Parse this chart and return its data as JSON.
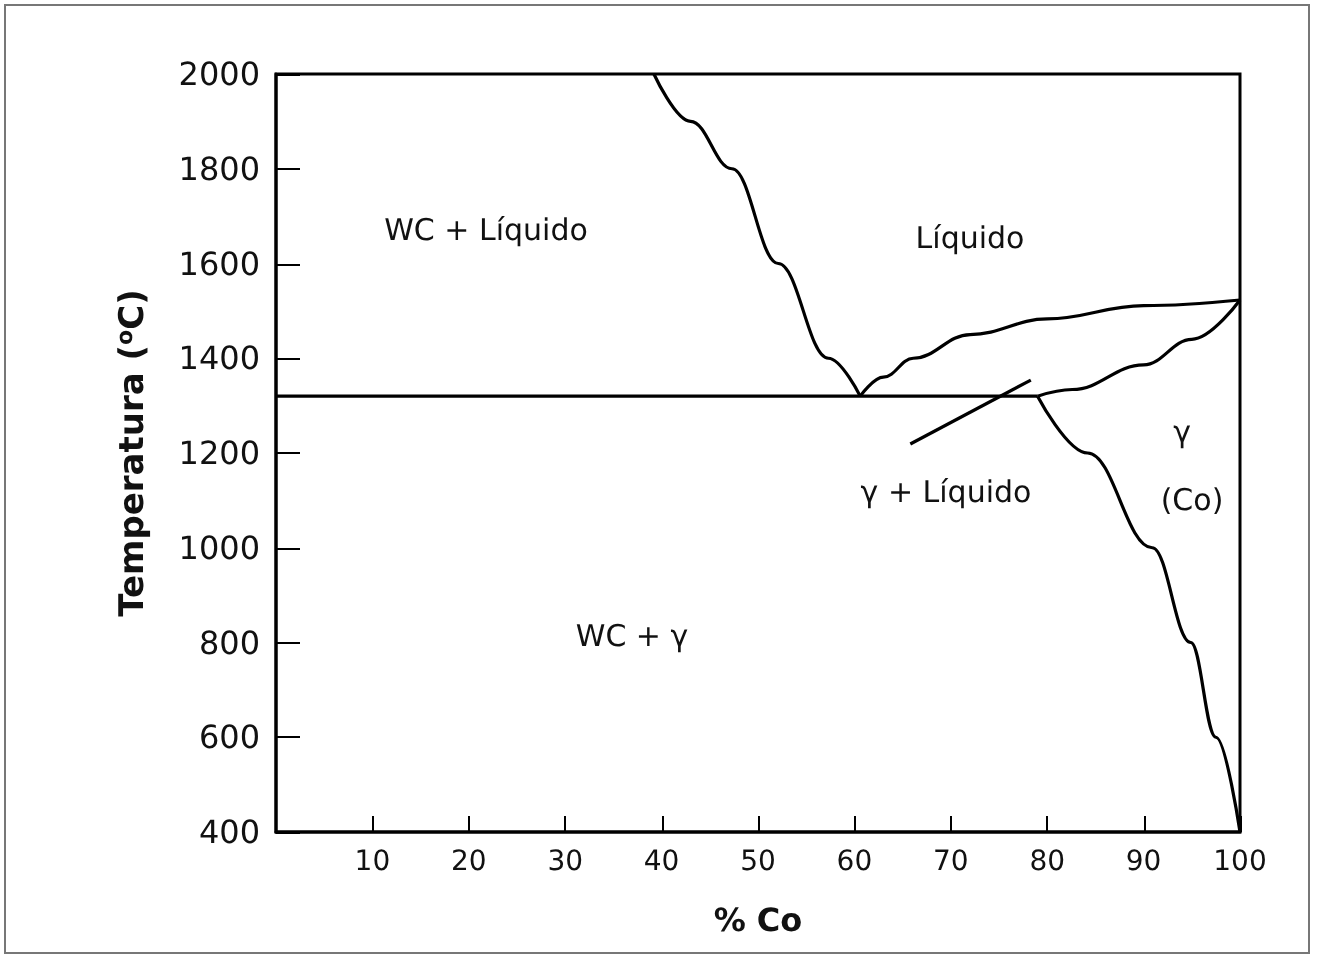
{
  "chart_data": {
    "type": "line",
    "xlabel": "% Co",
    "ylabel": "Temperatura ($^{o}$C)",
    "xlim": [
      0,
      100
    ],
    "xticks": [
      10,
      20,
      30,
      40,
      50,
      60,
      70,
      80,
      90,
      100
    ],
    "ylim": [
      400,
      2000
    ],
    "yticks": [
      400,
      600,
      800,
      1000,
      1200,
      1400,
      1600,
      1800,
      2000
    ],
    "grid": false,
    "marker": "none",
    "line_style": "solid",
    "series": [
      {
        "color": "#000000",
        "x": [
          39.2,
          43,
          47.3,
          52.1,
          57.3,
          60.6
        ],
        "values": [
          2000,
          1900,
          1800,
          1600,
          1400,
          1320
        ]
      },
      {
        "color": "#000000",
        "x": [
          0,
          79
        ],
        "values": [
          1320,
          1320
        ]
      },
      {
        "color": "#000000",
        "x": [
          60.6,
          63,
          66.1,
          72,
          80,
          90,
          100
        ],
        "values": [
          1320,
          1360,
          1400,
          1450,
          1483,
          1511,
          1523
        ]
      },
      {
        "color": "#000000",
        "x": [
          79,
          82.6,
          90,
          95,
          100
        ],
        "values": [
          1320,
          1334,
          1386,
          1440,
          1523
        ]
      },
      {
        "color": "#000000",
        "x": [
          79,
          84.2,
          90.9,
          94.9,
          97.5,
          100
        ],
        "values": [
          1320,
          1200,
          1000,
          800,
          600,
          400
        ]
      },
      {
        "color": "#000000",
        "x": [
          65.8,
          78.3
        ],
        "values": [
          1219,
          1354
        ]
      }
    ],
    "annotations": [
      "WC + Líquido",
      "Líquido",
      "γ + Líquido",
      "γ",
      "(Co)",
      "WC + γ"
    ]
  }
}
